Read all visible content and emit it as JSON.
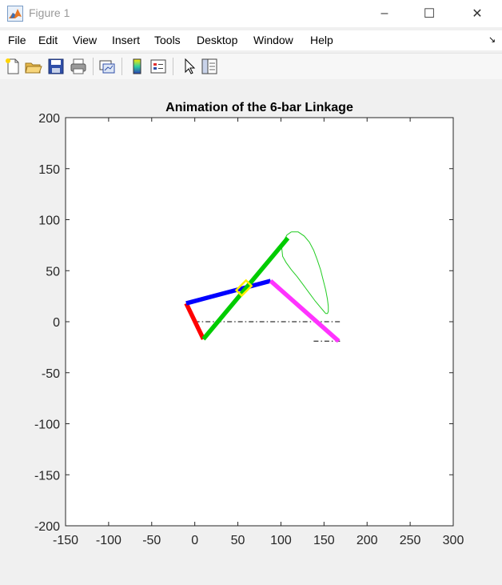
{
  "window": {
    "title": "Figure 1",
    "controls": {
      "minimize": "–",
      "maximize": "☐",
      "close": "✕"
    }
  },
  "menu": {
    "items": [
      "File",
      "Edit",
      "View",
      "Insert",
      "Tools",
      "Desktop",
      "Window",
      "Help"
    ],
    "dock_glyph": "↘"
  },
  "toolbar": {
    "icons": [
      "new-figure-icon",
      "open-file-icon",
      "save-icon",
      "print-icon",
      "link-plot-icon",
      "insert-colorbar-icon",
      "insert-legend-icon",
      "edit-plot-arrow-icon",
      "property-inspector-icon"
    ]
  },
  "chart_data": {
    "type": "line",
    "title": "Animation of the 6-bar Linkage",
    "xlabel": "",
    "ylabel": "",
    "xlim": [
      -150,
      300
    ],
    "ylim": [
      -200,
      200
    ],
    "xticks": [
      -150,
      -100,
      -50,
      0,
      50,
      100,
      150,
      200,
      250,
      300
    ],
    "yticks": [
      -200,
      -150,
      -100,
      -50,
      0,
      50,
      100,
      150,
      200
    ],
    "grid": false,
    "colors": {
      "red": "#ff0000",
      "blue": "#0000ff",
      "green": "#00cc00",
      "magenta": "#ff33ff",
      "yellow": "#ffee00",
      "trace": "#22cc22",
      "ground": "#000000"
    },
    "ground_lines": [
      {
        "x": [
          0,
          170
        ],
        "y": [
          0,
          0
        ]
      },
      {
        "x": [
          138,
          170
        ],
        "y": [
          -19,
          -19
        ]
      }
    ],
    "links": [
      {
        "color": "red",
        "x": [
          -10,
          10
        ],
        "y": [
          18,
          -17
        ]
      },
      {
        "color": "blue",
        "x": [
          -10,
          88
        ],
        "y": [
          18,
          40
        ]
      },
      {
        "color": "green",
        "x": [
          10,
          108
        ],
        "y": [
          -17,
          82
        ]
      },
      {
        "color": "magenta",
        "x": [
          88,
          167
        ],
        "y": [
          40,
          -19
        ]
      }
    ],
    "slider": {
      "center": [
        57,
        33
      ],
      "angle_deg": 45,
      "length": 16,
      "width": 9
    },
    "coupler_trace": {
      "x": [
        112,
        120,
        127,
        133,
        138,
        142,
        146,
        149,
        152,
        154,
        155,
        155,
        154,
        152,
        150,
        146,
        140,
        133,
        126,
        119,
        112,
        106,
        102,
        101,
        103,
        107,
        112
      ],
      "y": [
        88,
        88,
        84,
        78,
        70,
        61,
        51,
        41,
        31,
        22,
        15,
        10,
        8,
        8,
        10,
        14,
        20,
        28,
        36,
        44,
        51,
        58,
        64,
        72,
        79,
        85,
        88
      ]
    }
  }
}
